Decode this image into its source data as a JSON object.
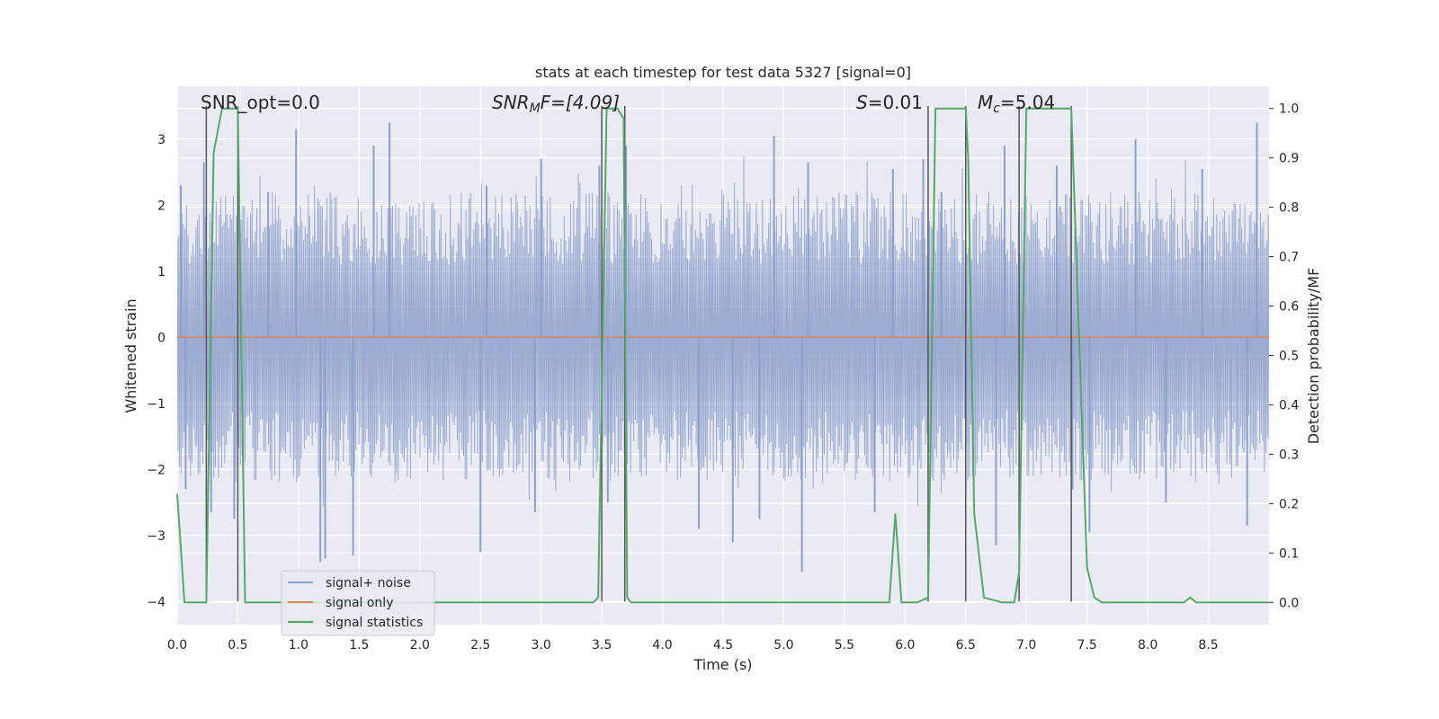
{
  "chart_data": {
    "type": "line",
    "title": "stats at each timestep for test data 5327 [signal=0]",
    "xlabel": "Time (s)",
    "ylabel_left": "Whitened strain",
    "ylabel_right": "Detection probability/MF",
    "xlim": [
      0.0,
      9.0
    ],
    "ylim_left": [
      -4.35,
      3.8
    ],
    "ylim_right": [
      -0.045,
      1.045
    ],
    "xticks": [
      0.0,
      0.5,
      1.0,
      1.5,
      2.0,
      2.5,
      3.0,
      3.5,
      4.0,
      4.5,
      5.0,
      5.5,
      6.0,
      6.5,
      7.0,
      7.5,
      8.0,
      8.5
    ],
    "xtick_labels": [
      "0.0",
      "0.5",
      "1.0",
      "1.5",
      "2.0",
      "2.5",
      "3.0",
      "3.5",
      "4.0",
      "4.5",
      "5.0",
      "5.5",
      "6.0",
      "6.5",
      "7.0",
      "7.5",
      "8.0",
      "8.5"
    ],
    "yticks_left": [
      -4,
      -3,
      -2,
      -1,
      0,
      1,
      2,
      3
    ],
    "ytick_labels_left": [
      "−4",
      "−3",
      "−2",
      "−1",
      "0",
      "1",
      "2",
      "3"
    ],
    "yticks_right": [
      0.0,
      0.1,
      0.2,
      0.3,
      0.4,
      0.5,
      0.6,
      0.7,
      0.8,
      0.9,
      1.0
    ],
    "ytick_labels_right": [
      "0.0",
      "0.1",
      "0.2",
      "0.3",
      "0.4",
      "0.5",
      "0.6",
      "0.7",
      "0.8",
      "0.9",
      "1.0"
    ],
    "annotations": {
      "snr_opt": "SNR_opt=0.0",
      "snr_mf_main": "SNR",
      "snr_mf_sub": "M",
      "snr_mf_rest": "F=[4.09]",
      "s_main": "S",
      "s_rest": "=0.01",
      "mc_main": "M",
      "mc_sub": "c",
      "mc_rest": "=5.04"
    },
    "legend": {
      "position": "lower-left",
      "entries": [
        "signal+ noise",
        "signal only",
        "signal statistics"
      ]
    },
    "colors": {
      "noise": "#8da0cb",
      "signal_only": "#dd8452",
      "statistics": "#55a868",
      "vlines": "#555555",
      "axes_bg": "#eaeaf2",
      "grid": "#ffffff"
    },
    "series": [
      {
        "name": "signal+ noise",
        "description_of_values": "whitened strain noise, approx. envelope",
        "amplitude_typical": 2.0,
        "extremes": [
          {
            "x": 0.03,
            "y": 2.3
          },
          {
            "x": 0.07,
            "y": -2.3
          },
          {
            "x": 0.22,
            "y": 2.65
          },
          {
            "x": 0.28,
            "y": -2.65
          },
          {
            "x": 0.47,
            "y": -2.75
          },
          {
            "x": 0.75,
            "y": 2.2
          },
          {
            "x": 0.98,
            "y": 3.15
          },
          {
            "x": 1.18,
            "y": -3.4
          },
          {
            "x": 1.22,
            "y": -3.35
          },
          {
            "x": 1.45,
            "y": -3.3
          },
          {
            "x": 1.75,
            "y": 3.25
          },
          {
            "x": 1.62,
            "y": 2.9
          },
          {
            "x": 2.5,
            "y": -3.25
          },
          {
            "x": 2.55,
            "y": 2.3
          },
          {
            "x": 2.95,
            "y": -2.65
          },
          {
            "x": 3.0,
            "y": 2.7
          },
          {
            "x": 3.48,
            "y": 2.6
          },
          {
            "x": 3.55,
            "y": -2.5
          },
          {
            "x": 3.7,
            "y": 2.9
          },
          {
            "x": 4.3,
            "y": -2.9
          },
          {
            "x": 4.58,
            "y": -3.1
          },
          {
            "x": 4.8,
            "y": -2.75
          },
          {
            "x": 4.92,
            "y": 3.05
          },
          {
            "x": 5.15,
            "y": -3.55
          },
          {
            "x": 5.2,
            "y": 2.65
          },
          {
            "x": 5.75,
            "y": -2.65
          },
          {
            "x": 5.9,
            "y": 2.55
          },
          {
            "x": 6.15,
            "y": 2.7
          },
          {
            "x": 6.3,
            "y": 2.2
          },
          {
            "x": 6.75,
            "y": -3.15
          },
          {
            "x": 6.82,
            "y": 2.9
          },
          {
            "x": 7.25,
            "y": 2.6
          },
          {
            "x": 7.38,
            "y": -2.3
          },
          {
            "x": 7.52,
            "y": -2.95
          },
          {
            "x": 7.9,
            "y": 3.0
          },
          {
            "x": 8.15,
            "y": -2.5
          },
          {
            "x": 8.45,
            "y": 2.55
          },
          {
            "x": 8.82,
            "y": -2.85
          },
          {
            "x": 8.9,
            "y": 3.25
          }
        ]
      },
      {
        "name": "signal only",
        "x": [
          0.0,
          9.0
        ],
        "y": [
          0.0,
          0.0
        ]
      },
      {
        "name": "signal statistics",
        "axis": "right",
        "x": [
          0.0,
          0.06,
          0.1,
          0.2,
          0.24,
          0.3,
          0.37,
          0.45,
          0.5,
          0.56,
          0.6,
          1.0,
          2.0,
          3.0,
          3.43,
          3.47,
          3.54,
          3.63,
          3.68,
          3.71,
          3.74,
          3.8,
          4.0,
          5.0,
          5.87,
          5.92,
          5.97,
          6.02,
          6.1,
          6.19,
          6.25,
          6.5,
          6.52,
          6.57,
          6.65,
          6.8,
          6.9,
          6.94,
          7.0,
          7.37,
          7.5,
          7.56,
          7.62,
          7.7,
          8.0,
          8.3,
          8.35,
          8.4,
          8.5,
          9.0
        ],
        "y": [
          0.22,
          0.0,
          0.0,
          0.0,
          0.0,
          0.91,
          1.0,
          1.0,
          1.0,
          0.0,
          0.0,
          0.0,
          0.0,
          0.0,
          0.0,
          0.01,
          1.0,
          1.0,
          0.98,
          0.01,
          0.0,
          0.0,
          0.0,
          0.0,
          0.0,
          0.18,
          0.0,
          0.0,
          0.0,
          0.01,
          1.0,
          1.0,
          0.9,
          0.18,
          0.01,
          0.0,
          0.0,
          0.06,
          1.0,
          1.0,
          0.07,
          0.01,
          0.0,
          0.0,
          0.0,
          0.0,
          0.01,
          0.0,
          0.0,
          0.0
        ]
      }
    ],
    "vertical_lines_x": [
      {
        "x": 0.24,
        "y_top": 3.5,
        "y_bottom": -4.0
      },
      {
        "x": 0.5,
        "y_top": 3.5,
        "y_bottom": -4.0
      },
      {
        "x": 3.5,
        "y_top": 3.5,
        "y_bottom": -4.0
      },
      {
        "x": 3.69,
        "y_top": 3.5,
        "y_bottom": -4.0
      },
      {
        "x": 6.19,
        "y_top": 3.5,
        "y_bottom": -4.0
      },
      {
        "x": 6.5,
        "y_top": 3.5,
        "y_bottom": -4.0
      },
      {
        "x": 6.94,
        "y_top": 3.5,
        "y_bottom": -4.0
      },
      {
        "x": 7.37,
        "y_top": 3.5,
        "y_bottom": -4.0
      }
    ]
  }
}
